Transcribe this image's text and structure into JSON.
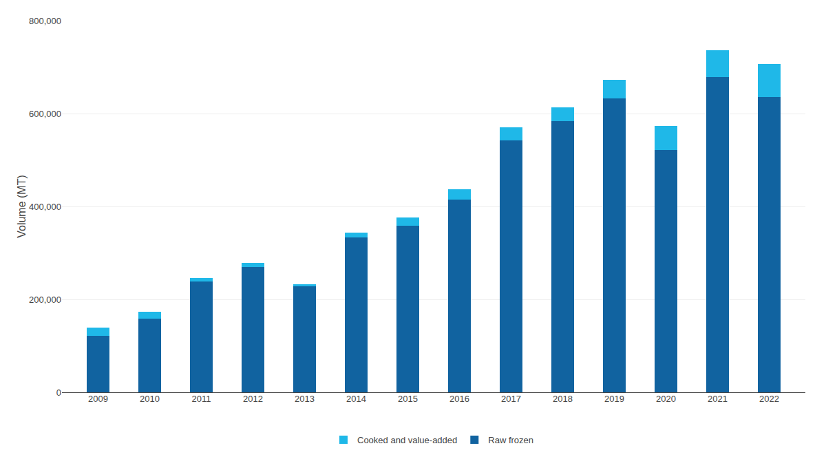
{
  "chart_data": {
    "type": "bar",
    "stacked": true,
    "ylabel": "Volume (MT)",
    "categories": [
      "2009",
      "2010",
      "2011",
      "2012",
      "2013",
      "2014",
      "2015",
      "2016",
      "2017",
      "2018",
      "2019",
      "2020",
      "2021",
      "2022"
    ],
    "series": [
      {
        "name": "Raw frozen",
        "color": "#1163A0",
        "values": [
          122000,
          158000,
          238000,
          270000,
          228000,
          333000,
          358000,
          415000,
          542000,
          583000,
          632000,
          522000,
          678000,
          635000
        ]
      },
      {
        "name": "Cooked and value-added",
        "color": "#1FB8E8",
        "values": [
          18000,
          15000,
          8000,
          9000,
          5000,
          10000,
          18000,
          22000,
          28000,
          30000,
          40000,
          52000,
          58000,
          72000
        ]
      }
    ],
    "ylim": [
      0,
      800000
    ],
    "yticks": [
      0,
      {
        "value": 200000,
        "label": "200,000"
      },
      {
        "value": 400000,
        "label": "400,000"
      },
      {
        "value": 600000,
        "label": "600,000"
      },
      {
        "value": 800000,
        "label": "800,000"
      }
    ],
    "grid": true,
    "legend": "bottom"
  }
}
